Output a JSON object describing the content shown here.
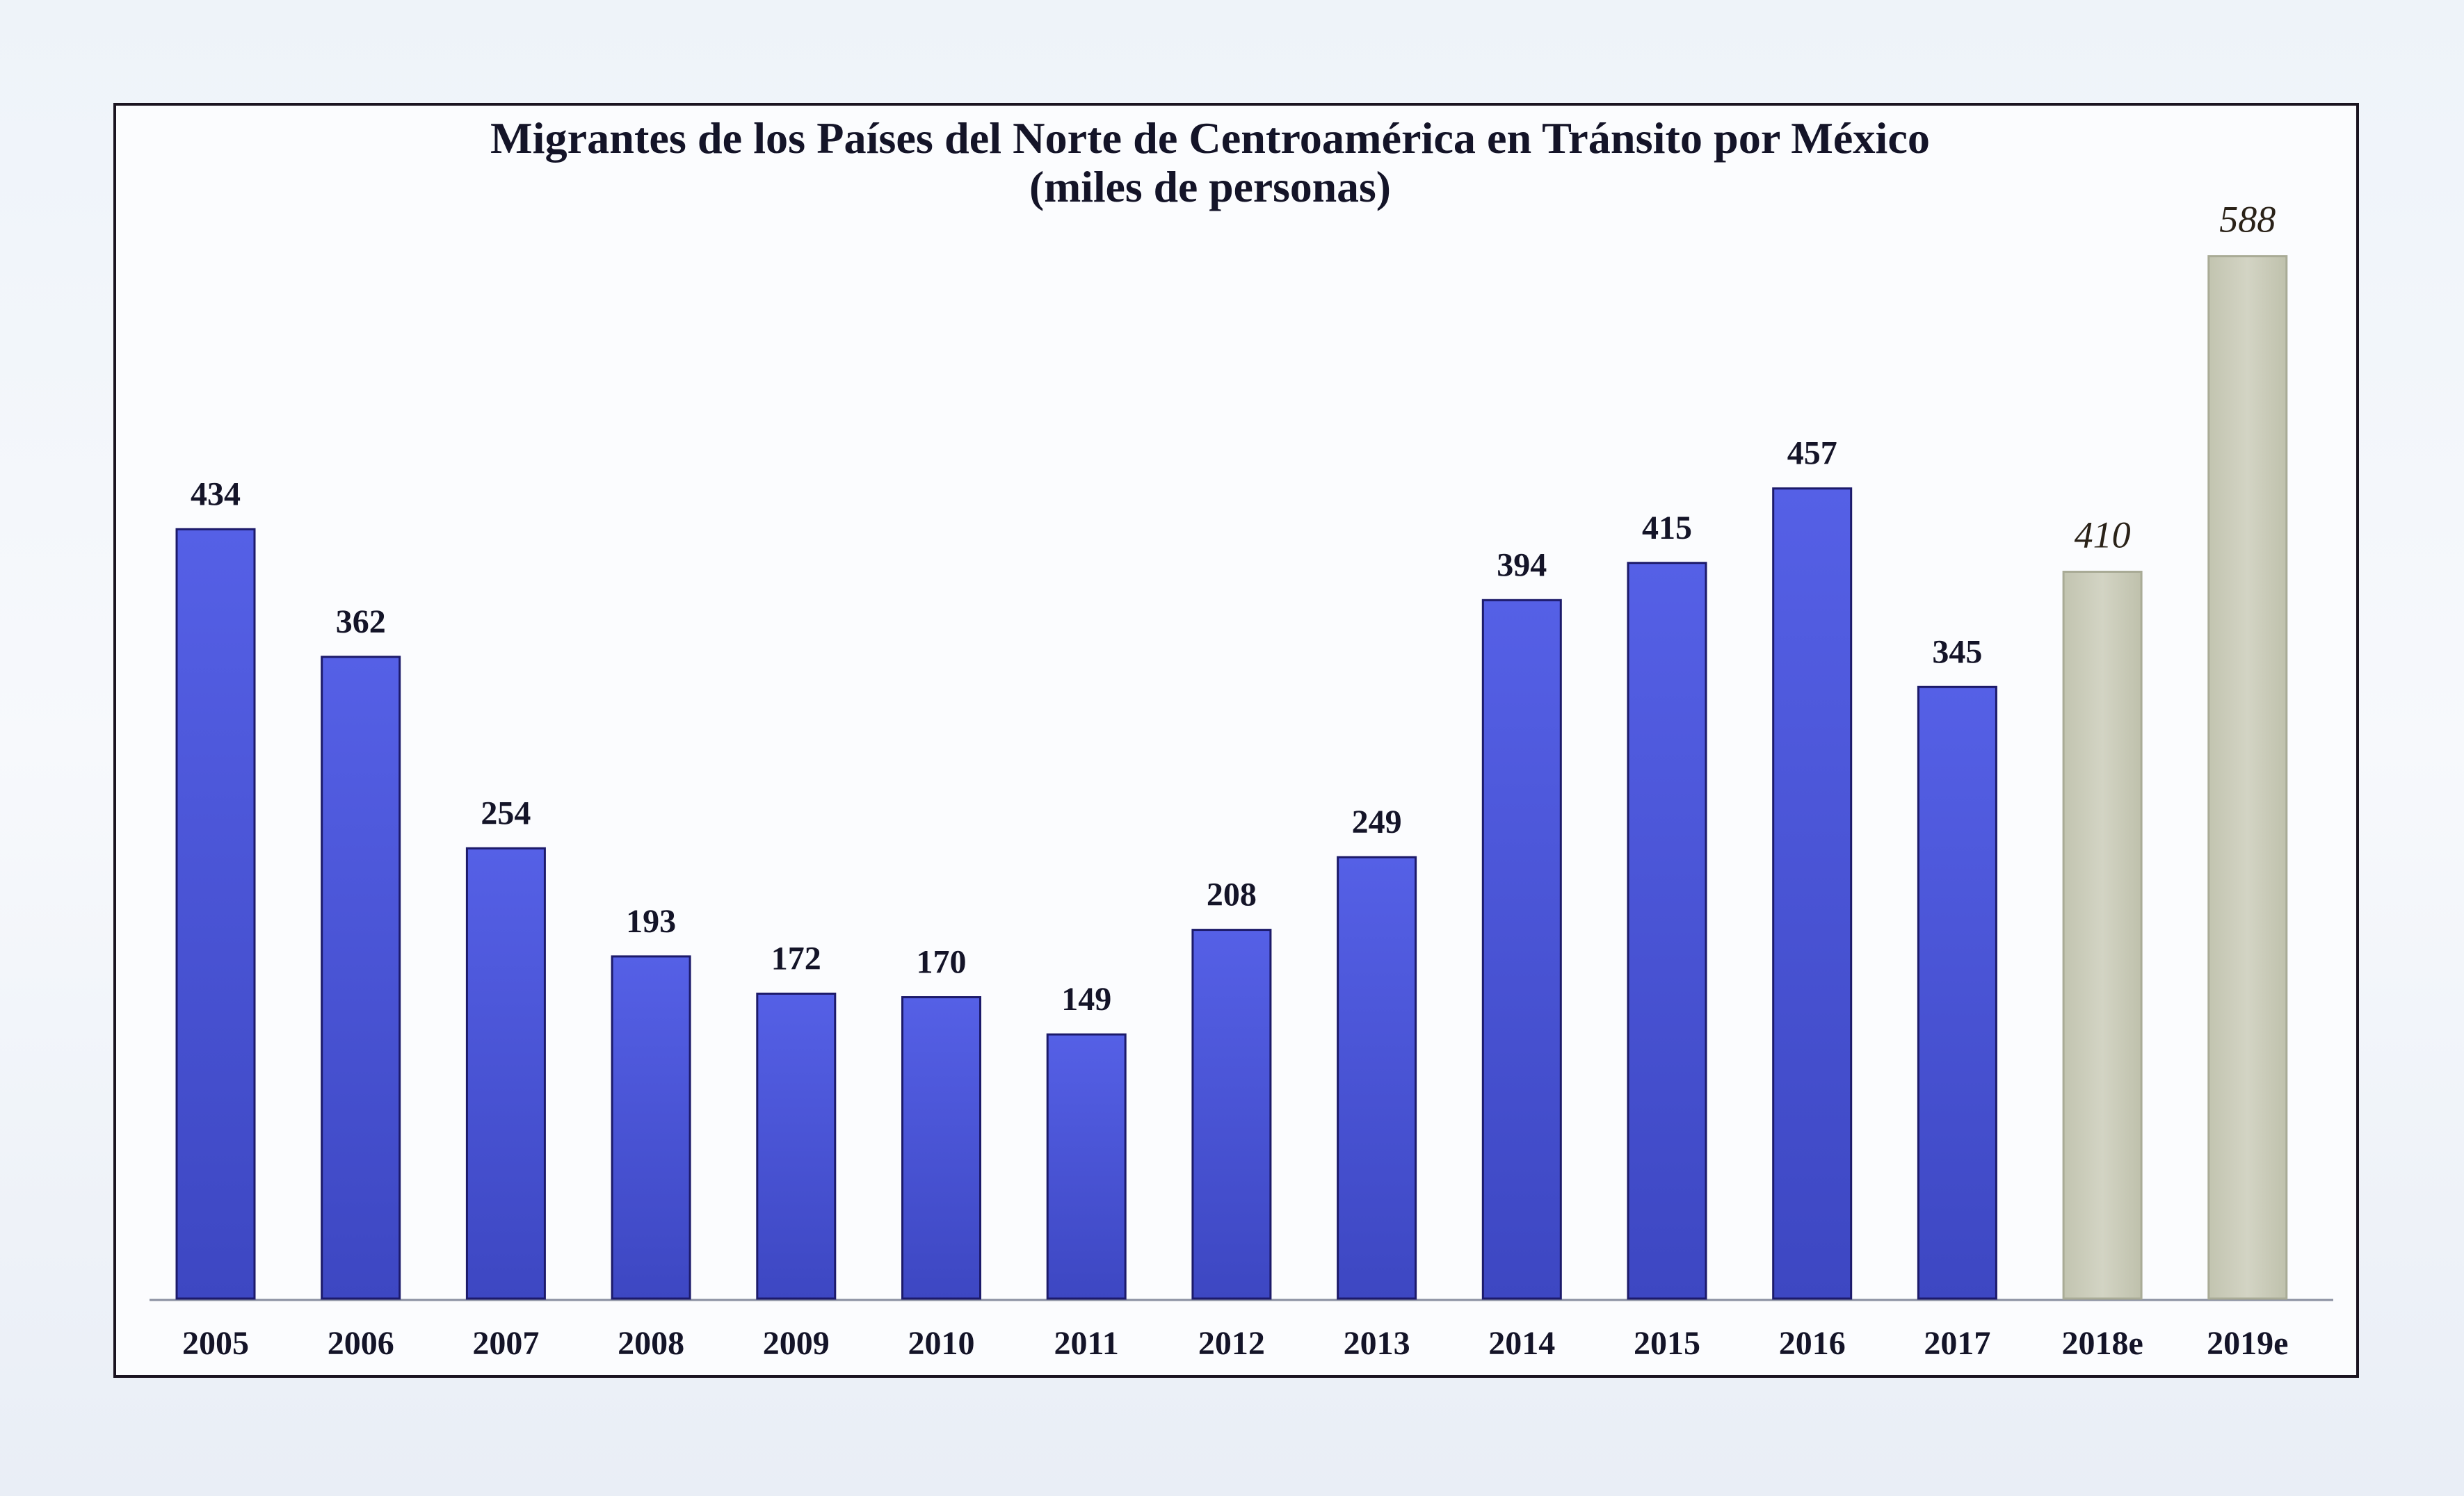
{
  "chart_data": {
    "type": "bar",
    "title": "Migrantes de los Países del Norte de Centroamérica en Tránsito por México",
    "subtitle": "(miles de personas)",
    "xlabel": "",
    "ylabel": "",
    "categories": [
      "2005",
      "2006",
      "2007",
      "2008",
      "2009",
      "2010",
      "2011",
      "2012",
      "2013",
      "2014",
      "2015",
      "2016",
      "2017",
      "2018e",
      "2019e"
    ],
    "values": [
      434,
      362,
      254,
      193,
      172,
      170,
      149,
      208,
      249,
      394,
      415,
      457,
      345,
      410,
      588
    ],
    "estimated": [
      false,
      false,
      false,
      false,
      false,
      false,
      false,
      false,
      false,
      false,
      false,
      false,
      false,
      true,
      true
    ],
    "ylim": [
      0,
      600
    ],
    "grid": false,
    "colors": {
      "actual": "#4b56d6",
      "estimate": "#c9cab8"
    }
  }
}
